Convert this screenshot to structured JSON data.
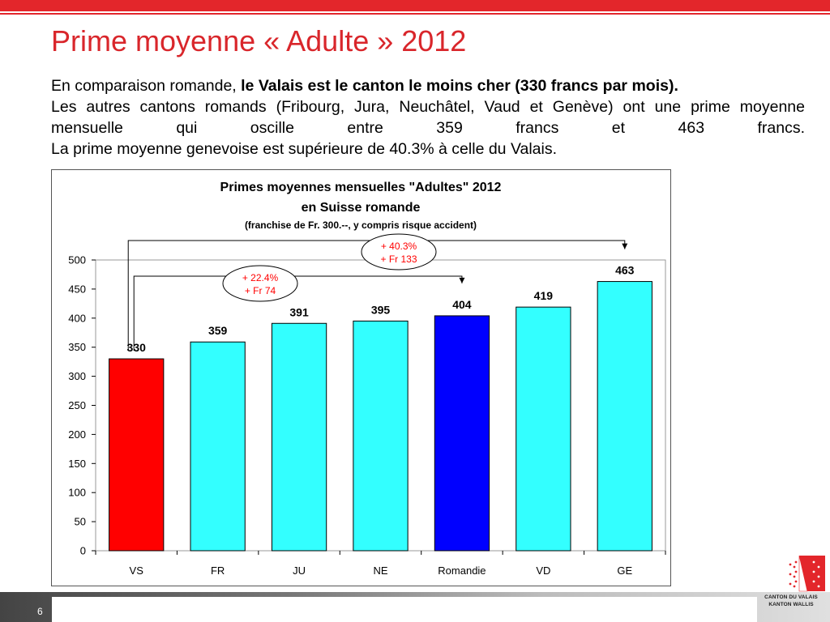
{
  "slide": {
    "title": "Prime moyenne « Adulte » 2012",
    "intro_plain": "En comparaison romande,",
    "intro_bold": "le Valais est le canton le moins cher (330 francs par mois).",
    "line2": "Les autres cantons romands (Fribourg, Jura, Neuchâtel, Vaud et Genève) ont une prime moyenne mensuelle qui oscille entre 359 francs et 463 francs.",
    "line3": "La prime moyenne genevoise est supérieure de 40.3% à celle du Valais.",
    "page_number": "6",
    "logo_line1": "CANTON DU VALAIS",
    "logo_line2": "KANTON WALLIS"
  },
  "chart_data": {
    "type": "bar",
    "title_line1": "Primes moyennes mensuelles \"Adultes\" 2012",
    "title_line2": "en Suisse romande",
    "subtitle": "(franchise de Fr. 300.--, y compris risque accident)",
    "categories": [
      "VS",
      "FR",
      "JU",
      "NE",
      "Romandie",
      "VD",
      "GE"
    ],
    "values": [
      330,
      359,
      391,
      395,
      404,
      419,
      463
    ],
    "value_labels": [
      "330",
      "359",
      "391",
      "395",
      "404",
      "419",
      "463"
    ],
    "bar_colors": [
      "#ff0000",
      "#33ffff",
      "#33ffff",
      "#33ffff",
      "#0000ff",
      "#33ffff",
      "#33ffff"
    ],
    "ylim": [
      0,
      500
    ],
    "yticks": [
      0,
      50,
      100,
      150,
      200,
      250,
      300,
      350,
      400,
      450,
      500
    ],
    "ytick_labels": [
      "0",
      "50",
      "100",
      "150",
      "200",
      "250",
      "300",
      "350",
      "400",
      "450",
      "500"
    ],
    "grid": false,
    "annotations": [
      {
        "from": "VS",
        "to": "Romandie",
        "line1": "+ 22.4%",
        "line2": "+ Fr 74"
      },
      {
        "from": "VS",
        "to": "GE",
        "line1": "+ 40.3%",
        "line2": "+ Fr 133"
      }
    ],
    "annotation_color": "#ff0000"
  }
}
